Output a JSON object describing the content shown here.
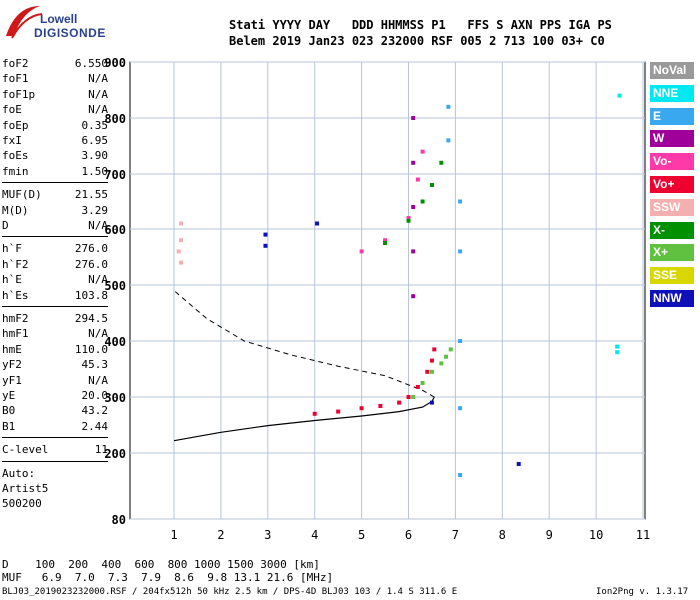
{
  "logo": {
    "line1": "Lowell",
    "line2": "DIGISONDE"
  },
  "header": {
    "labels": "Stati YYYY DAY   DDD HHMMSS P1   FFS S AXN PPS IGA PS",
    "values": "Belem 2019 Jan23 023 232000 RSF 005 2 713 100 03+ C0"
  },
  "params_group1": [
    {
      "name": "foF2",
      "value": "6.550"
    },
    {
      "name": "foF1",
      "value": "N/A"
    },
    {
      "name": "foF1p",
      "value": "N/A"
    },
    {
      "name": "foE",
      "value": "N/A"
    },
    {
      "name": "foEp",
      "value": "0.35"
    },
    {
      "name": "fxI",
      "value": "6.95"
    },
    {
      "name": "foEs",
      "value": "3.90"
    },
    {
      "name": "fmin",
      "value": "1.50"
    }
  ],
  "params_group2": [
    {
      "name": "MUF(D)",
      "value": "21.55"
    },
    {
      "name": "M(D)",
      "value": "3.29"
    },
    {
      "name": "D",
      "value": "N/A"
    }
  ],
  "params_group3": [
    {
      "name": "h`F",
      "value": "276.0"
    },
    {
      "name": "h`F2",
      "value": "276.0"
    },
    {
      "name": "h`E",
      "value": "N/A"
    },
    {
      "name": "h`Es",
      "value": "103.8"
    }
  ],
  "params_group4": [
    {
      "name": "hmF2",
      "value": "294.5"
    },
    {
      "name": "hmF1",
      "value": "N/A"
    },
    {
      "name": "hmE",
      "value": "110.0"
    },
    {
      "name": "yF2",
      "value": "45.3"
    },
    {
      "name": "yF1",
      "value": "N/A"
    },
    {
      "name": "yE",
      "value": "20.0"
    },
    {
      "name": "B0",
      "value": "43.2"
    },
    {
      "name": "B1",
      "value": "2.44"
    }
  ],
  "clevel": {
    "name": "C-level",
    "value": "11"
  },
  "autoscale": {
    "line1": "Auto:",
    "line2": "Artist5",
    "line3": "500200"
  },
  "legend": [
    {
      "label": "NoVal",
      "color": "#9a9a9a"
    },
    {
      "label": "NNE",
      "color": "#00e8f0"
    },
    {
      "label": "E",
      "color": "#3aa8ee"
    },
    {
      "label": "W",
      "color": "#a0009a"
    },
    {
      "label": "Vo-",
      "color": "#ff3aa8"
    },
    {
      "label": "Vo+",
      "color": "#ee0030"
    },
    {
      "label": "SSW",
      "color": "#f4b0b0"
    },
    {
      "label": "X-",
      "color": "#009000"
    },
    {
      "label": "X+",
      "color": "#60c040"
    },
    {
      "label": "SSE",
      "color": "#d8d800"
    },
    {
      "label": "NNW",
      "color": "#1010b8"
    }
  ],
  "footer": {
    "d_row": "D    100  200  400  600  800 1000 1500 3000 [km]",
    "muf_row": "MUF   6.9  7.0  7.3  7.9  8.6  9.8 13.1 21.6 [MHz]",
    "info": "BLJ03_2019023232000.RSF / 204fx512h 50 kHz 2.5 km / DPS-4D BLJ03 103 / 1.4 S 311.6 E",
    "version": "Ion2Png v. 1.3.17"
  },
  "chart_data": {
    "type": "scatter",
    "xlim": [
      0.5,
      11
    ],
    "ylim": [
      80,
      900
    ],
    "xticks": [
      "1",
      "2",
      "3",
      "4",
      "5",
      "6",
      "7",
      "8",
      "9",
      "10",
      "11"
    ],
    "yticks": [
      "80",
      "200",
      "300",
      "400",
      "500",
      "600",
      "700",
      "800",
      "900"
    ],
    "grid": true,
    "legend_position": "right",
    "series": [
      {
        "name": "Vo+",
        "points": [
          [
            4.0,
            270
          ],
          [
            4.5,
            274
          ],
          [
            5.0,
            280
          ],
          [
            5.4,
            284
          ],
          [
            5.8,
            290
          ],
          [
            6.0,
            300
          ],
          [
            6.2,
            318
          ],
          [
            6.4,
            345
          ],
          [
            6.5,
            365
          ],
          [
            6.55,
            385
          ]
        ]
      },
      {
        "name": "X+",
        "points": [
          [
            6.1,
            300
          ],
          [
            6.3,
            325
          ],
          [
            6.5,
            345
          ],
          [
            6.7,
            360
          ],
          [
            6.8,
            372
          ],
          [
            6.9,
            385
          ]
        ]
      },
      {
        "name": "Vo-",
        "points": [
          [
            5.0,
            560
          ],
          [
            5.5,
            580
          ],
          [
            6.0,
            620
          ],
          [
            6.2,
            690
          ],
          [
            6.3,
            740
          ]
        ]
      },
      {
        "name": "X-",
        "points": [
          [
            5.5,
            575
          ],
          [
            6.0,
            615
          ],
          [
            6.3,
            650
          ],
          [
            6.5,
            680
          ],
          [
            6.7,
            720
          ]
        ]
      },
      {
        "name": "W",
        "points": [
          [
            6.1,
            480
          ],
          [
            6.1,
            560
          ],
          [
            6.1,
            640
          ],
          [
            6.1,
            720
          ],
          [
            6.1,
            800
          ]
        ]
      },
      {
        "name": "E",
        "points": [
          [
            7.1,
            160
          ],
          [
            7.1,
            280
          ],
          [
            7.1,
            400
          ],
          [
            7.1,
            560
          ],
          [
            7.1,
            650
          ],
          [
            6.85,
            820
          ],
          [
            6.85,
            760
          ]
        ]
      },
      {
        "name": "NNE",
        "points": [
          [
            10.45,
            390
          ],
          [
            10.45,
            380
          ],
          [
            10.5,
            840
          ]
        ]
      },
      {
        "name": "NNW",
        "points": [
          [
            2.95,
            590
          ],
          [
            2.95,
            570
          ],
          [
            4.05,
            610
          ],
          [
            6.5,
            290
          ],
          [
            8.35,
            180
          ]
        ]
      },
      {
        "name": "SSW",
        "points": [
          [
            1.15,
            610
          ],
          [
            1.15,
            580
          ],
          [
            1.15,
            540
          ],
          [
            1.1,
            560
          ]
        ]
      }
    ],
    "profile_solid": [
      [
        1.0,
        222
      ],
      [
        2.0,
        237
      ],
      [
        3.0,
        249
      ],
      [
        4.0,
        258
      ],
      [
        5.0,
        266
      ],
      [
        5.8,
        274
      ],
      [
        6.3,
        282
      ],
      [
        6.5,
        292
      ],
      [
        6.55,
        300
      ]
    ],
    "profile_dashed": [
      [
        6.55,
        300
      ],
      [
        6.3,
        312
      ],
      [
        5.5,
        338
      ],
      [
        4.5,
        355
      ],
      [
        3.5,
        375
      ],
      [
        2.5,
        400
      ],
      [
        1.7,
        440
      ],
      [
        1.0,
        490
      ]
    ]
  }
}
